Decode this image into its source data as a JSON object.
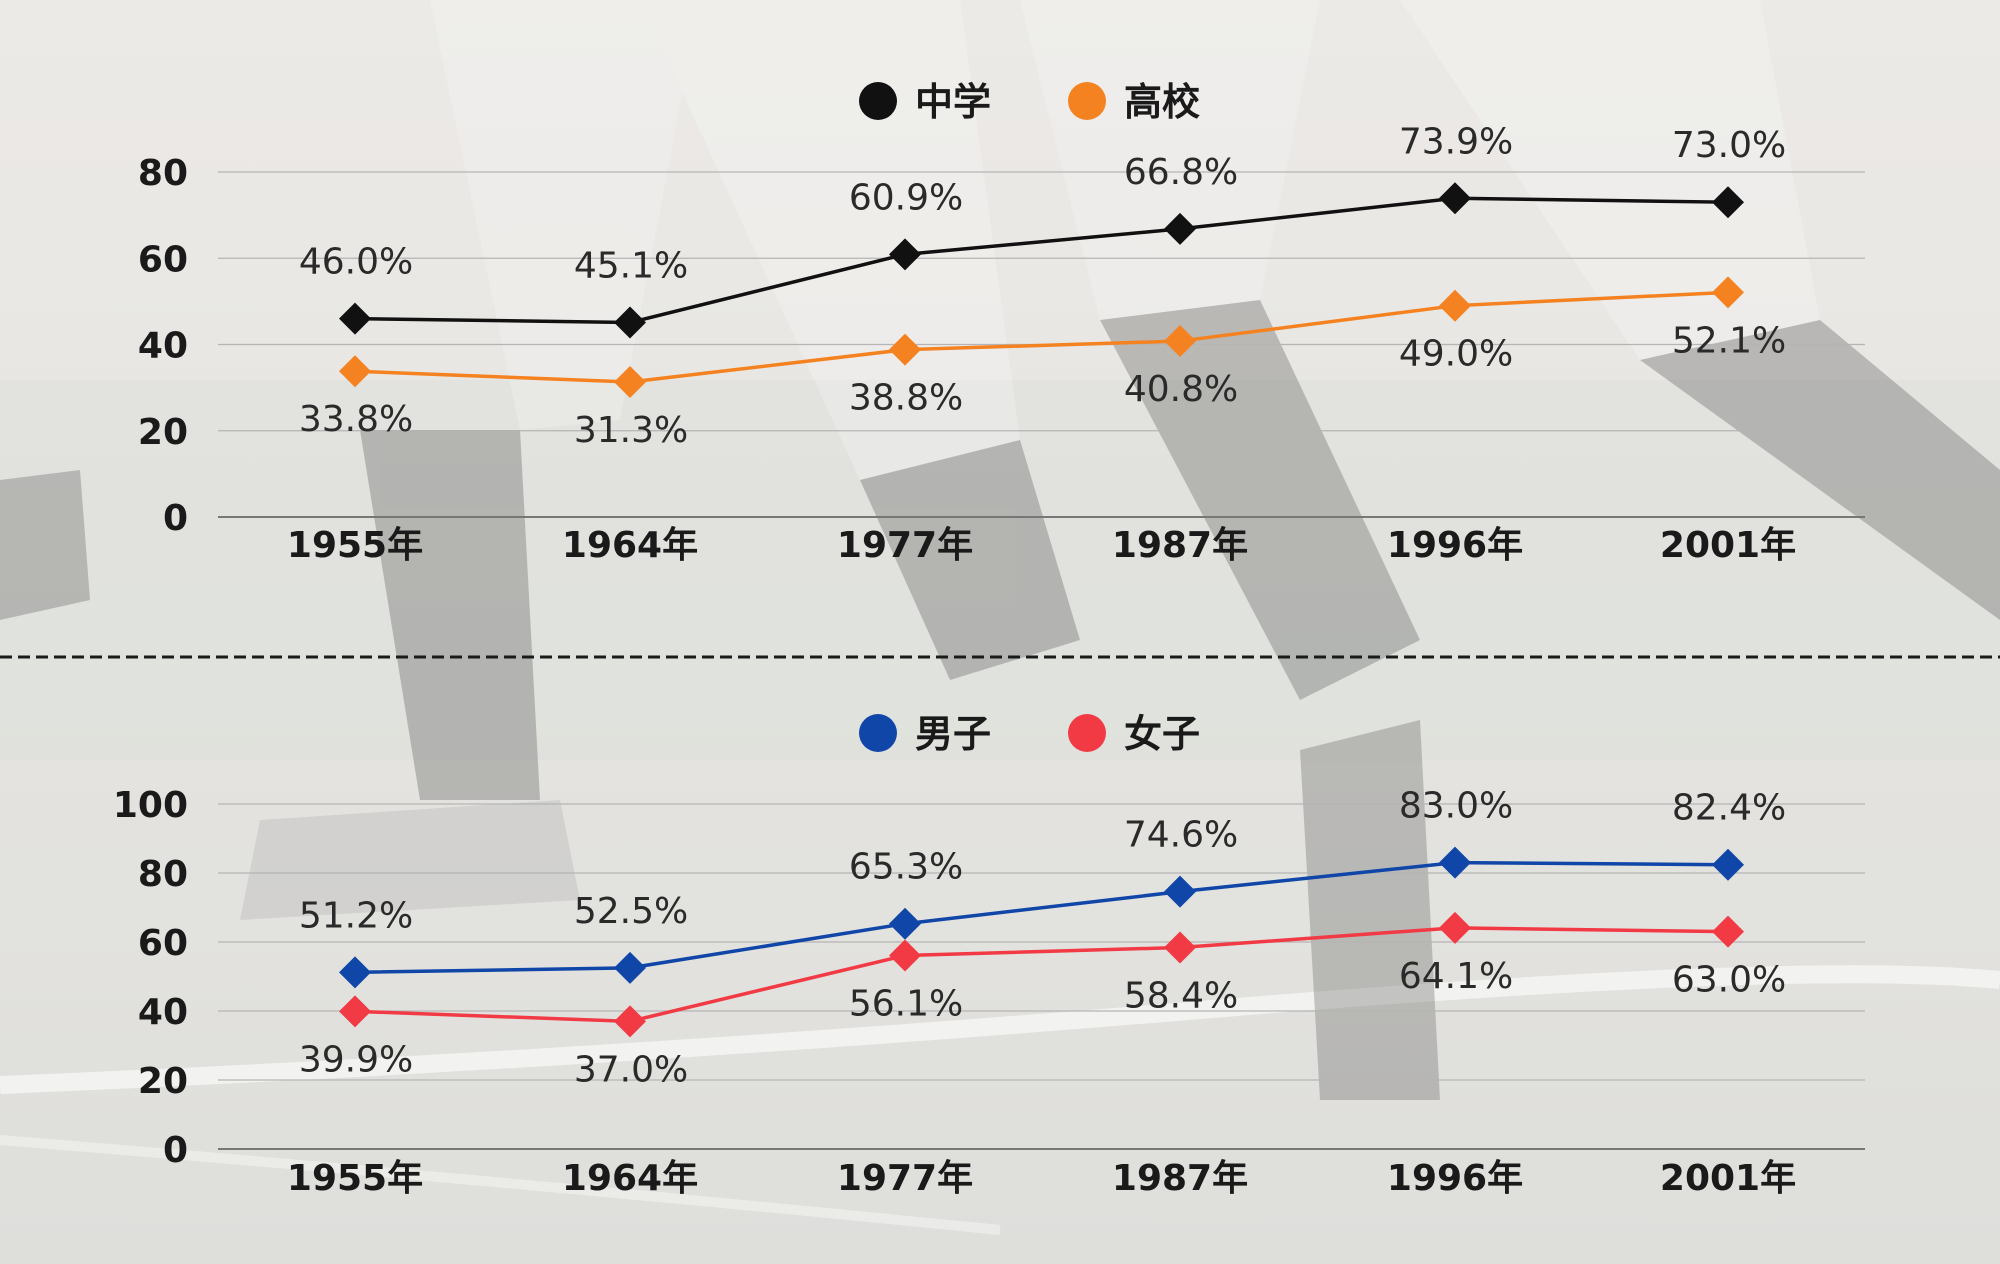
{
  "chart_data": [
    {
      "type": "line",
      "categories": [
        "1955年",
        "1964年",
        "1977年",
        "1987年",
        "1996年",
        "2001年"
      ],
      "ylim": [
        0,
        80
      ],
      "yticks": [
        "0",
        "20",
        "40",
        "60",
        "80"
      ],
      "grid": true,
      "legend_position": "top-center",
      "series": [
        {
          "name": "中学",
          "color": "#111111",
          "values": [
            46.0,
            45.1,
            60.9,
            66.8,
            73.9,
            73.0
          ],
          "labels": [
            "46.0%",
            "45.1%",
            "60.9%",
            "66.8%",
            "73.9%",
            "73.0%"
          ],
          "label_side": "above"
        },
        {
          "name": "高校",
          "color": "#f58220",
          "values": [
            33.8,
            31.3,
            38.8,
            40.8,
            49.0,
            52.1
          ],
          "labels": [
            "33.8%",
            "31.3%",
            "38.8%",
            "40.8%",
            "49.0%",
            "52.1%"
          ],
          "label_side": "below"
        }
      ]
    },
    {
      "type": "line",
      "categories": [
        "1955年",
        "1964年",
        "1977年",
        "1987年",
        "1996年",
        "2001年"
      ],
      "ylim": [
        0,
        100
      ],
      "yticks": [
        "0",
        "20",
        "40",
        "60",
        "80",
        "100"
      ],
      "grid": true,
      "legend_position": "top-center",
      "series": [
        {
          "name": "男子",
          "color": "#1046a8",
          "values": [
            51.2,
            52.5,
            65.3,
            74.6,
            83.0,
            82.4
          ],
          "labels": [
            "51.2%",
            "52.5%",
            "65.3%",
            "74.6%",
            "83.0%",
            "82.4%"
          ],
          "label_side": "above"
        },
        {
          "name": "女子",
          "color": "#f23a45",
          "values": [
            39.9,
            37.0,
            56.1,
            58.4,
            64.1,
            63.0
          ],
          "labels": [
            "39.9%",
            "37.0%",
            "56.1%",
            "58.4%",
            "64.1%",
            "63.0%"
          ],
          "label_side": "below"
        }
      ]
    }
  ]
}
